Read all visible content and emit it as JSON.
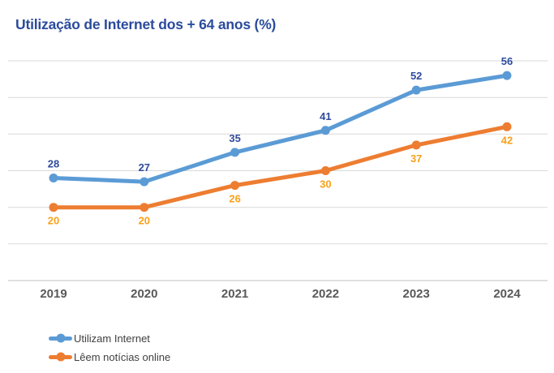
{
  "title": "Utilização de Internet dos + 64 anos (%)",
  "chart_data": {
    "type": "line",
    "title": "Utilização de Internet dos + 64 anos (%)",
    "categories": [
      "2019",
      "2020",
      "2021",
      "2022",
      "2023",
      "2024"
    ],
    "series": [
      {
        "name": "Utilizam Internet",
        "values": [
          28,
          27,
          35,
          41,
          52,
          56
        ],
        "color": "#5b9bd5",
        "label_color": "#2e4a9c",
        "label_position": "above"
      },
      {
        "name": "Lêem notícias online",
        "values": [
          20,
          20,
          26,
          30,
          37,
          42
        ],
        "color": "#ed7d31",
        "label_color": "#f9a11b",
        "label_position": "below"
      }
    ],
    "ylim": [
      0,
      60
    ],
    "y_gridline_step": 10,
    "grid": true,
    "y_axis_labels_visible": false,
    "data_labels_visible": true,
    "legend_position": "bottom-left"
  },
  "colors": {
    "title": "#2b4b9c",
    "gridline": "#d9d9d9",
    "axis_line": "#bfbfbf",
    "tick_label": "#595959",
    "legend_text": "#3f3f3f",
    "background": "#ffffff"
  }
}
